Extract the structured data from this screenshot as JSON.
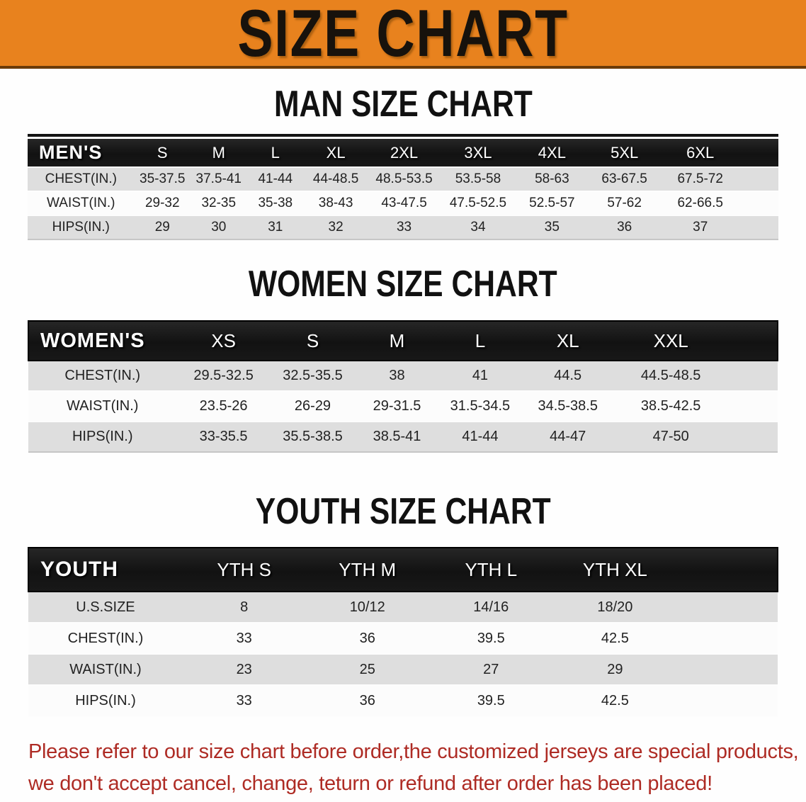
{
  "banner": {
    "title": "SIZE CHART"
  },
  "colors": {
    "banner_orange": "#E8821E",
    "header_bar_black": "#141414",
    "stripe_gray": "#DEDEDE",
    "disclaimer_red": "#AE2B24"
  },
  "sections": [
    {
      "heading": "MAN SIZE CHART",
      "table": {
        "label": "MEN'S",
        "columns": [
          "S",
          "M",
          "L",
          "XL",
          "2XL",
          "3XL",
          "4XL",
          "5XL",
          "6XL"
        ],
        "rows": [
          {
            "label": "CHEST(IN.)",
            "values": [
              "35-37.5",
              "37.5-41",
              "41-44",
              "44-48.5",
              "48.5-53.5",
              "53.5-58",
              "58-63",
              "63-67.5",
              "67.5-72"
            ]
          },
          {
            "label": "WAIST(IN.)",
            "values": [
              "29-32",
              "32-35",
              "35-38",
              "38-43",
              "43-47.5",
              "47.5-52.5",
              "52.5-57",
              "57-62",
              "62-66.5"
            ]
          },
          {
            "label": "HIPS(IN.)",
            "values": [
              "29",
              "30",
              "31",
              "32",
              "33",
              "34",
              "35",
              "36",
              "37"
            ]
          }
        ]
      }
    },
    {
      "heading": "WOMEN SIZE CHART",
      "table": {
        "label": "WOMEN'S",
        "columns": [
          "XS",
          "S",
          "M",
          "L",
          "XL",
          "XXL"
        ],
        "rows": [
          {
            "label": "CHEST(IN.)",
            "values": [
              "29.5-32.5",
              "32.5-35.5",
              "38",
              "41",
              "44.5",
              "44.5-48.5"
            ]
          },
          {
            "label": "WAIST(IN.)",
            "values": [
              "23.5-26",
              "26-29",
              "29-31.5",
              "31.5-34.5",
              "34.5-38.5",
              "38.5-42.5"
            ]
          },
          {
            "label": "HIPS(IN.)",
            "values": [
              "33-35.5",
              "35.5-38.5",
              "38.5-41",
              "41-44",
              "44-47",
              "47-50"
            ]
          }
        ]
      }
    },
    {
      "heading": "YOUTH SIZE CHART",
      "table": {
        "label": "YOUTH",
        "columns": [
          "YTH S",
          "YTH M",
          "YTH L",
          "YTH XL"
        ],
        "rows": [
          {
            "label": "U.S.SIZE",
            "values": [
              "8",
              "10/12",
              "14/16",
              "18/20"
            ]
          },
          {
            "label": "CHEST(IN.)",
            "values": [
              "33",
              "36",
              "39.5",
              "42.5"
            ]
          },
          {
            "label": "WAIST(IN.)",
            "values": [
              "23",
              "25",
              "27",
              "29"
            ]
          },
          {
            "label": "HIPS(IN.)",
            "values": [
              "33",
              "36",
              "39.5",
              "42.5"
            ]
          }
        ]
      }
    }
  ],
  "disclaimer": {
    "line1": "Please refer to our size chart before order,the customized jerseys are special products,",
    "line2": "we don't accept cancel, change, teturn or refund after order has been placed!"
  }
}
